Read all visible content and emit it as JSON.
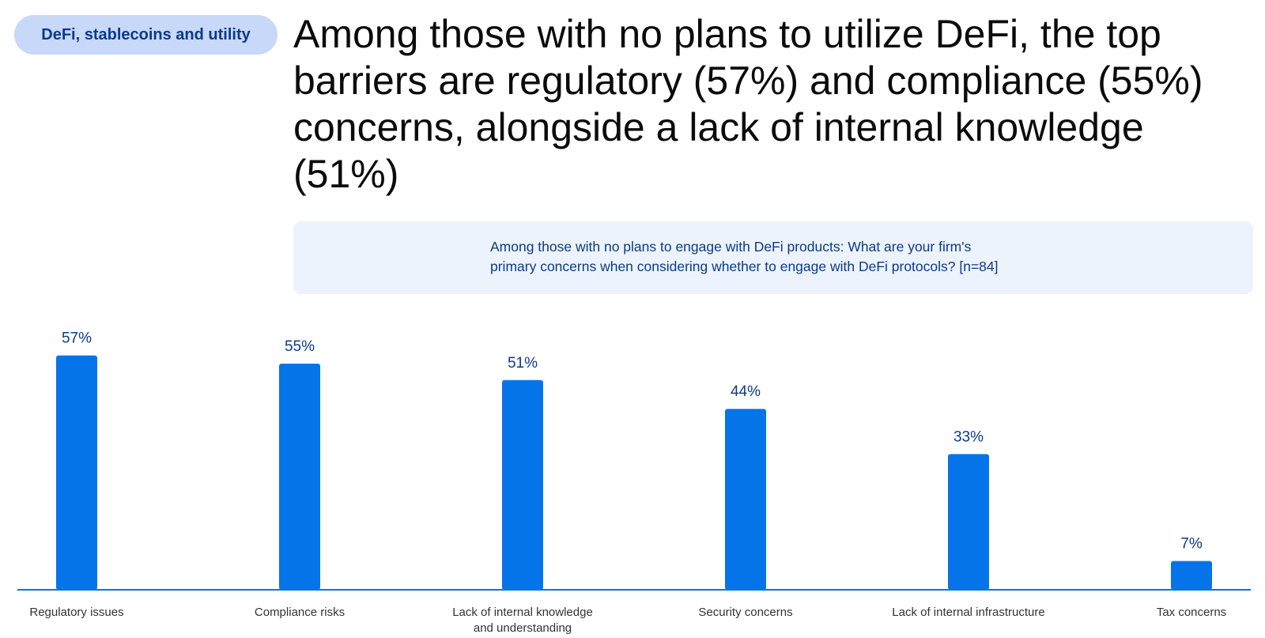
{
  "tag": {
    "label": "DeFi, stablecoins and utility"
  },
  "headline": "Among those with no plans to utilize DeFi, the top barriers are regulatory (57%) and compliance (55%) concerns, alongside a lack of internal knowledge (51%)",
  "question": {
    "line1": "Among those with no plans to engage with DeFi products: What are your firm's",
    "line2": "primary concerns when considering whether to engage with DeFi protocols? [n=84]"
  },
  "colors": {
    "bar": "#0574e8",
    "axis": "#0574e8",
    "value_label": "#0b3a8a"
  },
  "chart_data": {
    "type": "bar",
    "title": "",
    "xlabel": "",
    "ylabel": "",
    "categories": [
      "Regulatory issues",
      "Compliance risks",
      "Lack of internal knowledge and understanding",
      "Security concerns",
      "Lack of internal infrastructure",
      "Tax concerns"
    ],
    "category_lines": [
      [
        "Regulatory issues"
      ],
      [
        "Compliance risks"
      ],
      [
        "Lack of internal knowledge",
        "and understanding"
      ],
      [
        "Security concerns"
      ],
      [
        "Lack of internal infrastructure"
      ],
      [
        "Tax concerns"
      ]
    ],
    "values": [
      57,
      55,
      51,
      44,
      33,
      7
    ],
    "value_labels": [
      "57%",
      "55%",
      "51%",
      "44%",
      "33%",
      "7%"
    ],
    "unit": "%",
    "ylim": [
      0,
      60
    ],
    "grid": false,
    "legend": "none"
  }
}
